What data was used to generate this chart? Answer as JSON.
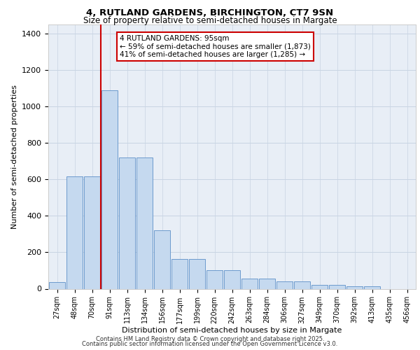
{
  "title_line1": "4, RUTLAND GARDENS, BIRCHINGTON, CT7 9SN",
  "title_line2": "Size of property relative to semi-detached houses in Margate",
  "xlabel": "Distribution of semi-detached houses by size in Margate",
  "ylabel": "Number of semi-detached properties",
  "categories": [
    "27sqm",
    "48sqm",
    "70sqm",
    "91sqm",
    "113sqm",
    "134sqm",
    "156sqm",
    "177sqm",
    "199sqm",
    "220sqm",
    "242sqm",
    "263sqm",
    "284sqm",
    "306sqm",
    "327sqm",
    "349sqm",
    "370sqm",
    "392sqm",
    "413sqm",
    "435sqm",
    "456sqm"
  ],
  "values": [
    35,
    615,
    615,
    1090,
    720,
    720,
    320,
    165,
    165,
    100,
    100,
    55,
    55,
    40,
    40,
    20,
    20,
    15,
    15,
    0,
    0
  ],
  "bar_color": "#c5d9ef",
  "bar_edge_color": "#5b8fc7",
  "property_bin_index": 3,
  "property_label": "4 RUTLAND GARDENS: 95sqm",
  "annotation_smaller": "← 59% of semi-detached houses are smaller (1,873)",
  "annotation_larger": "41% of semi-detached houses are larger (1,285) →",
  "vline_color": "#cc0000",
  "annotation_box_edge": "#cc0000",
  "grid_color": "#c8d4e3",
  "background_color": "#e8eef6",
  "footnote_line1": "Contains HM Land Registry data © Crown copyright and database right 2025.",
  "footnote_line2": "Contains public sector information licensed under the Open Government Licence v3.0.",
  "ylim": [
    0,
    1450
  ],
  "yticks": [
    0,
    200,
    400,
    600,
    800,
    1000,
    1200,
    1400
  ]
}
